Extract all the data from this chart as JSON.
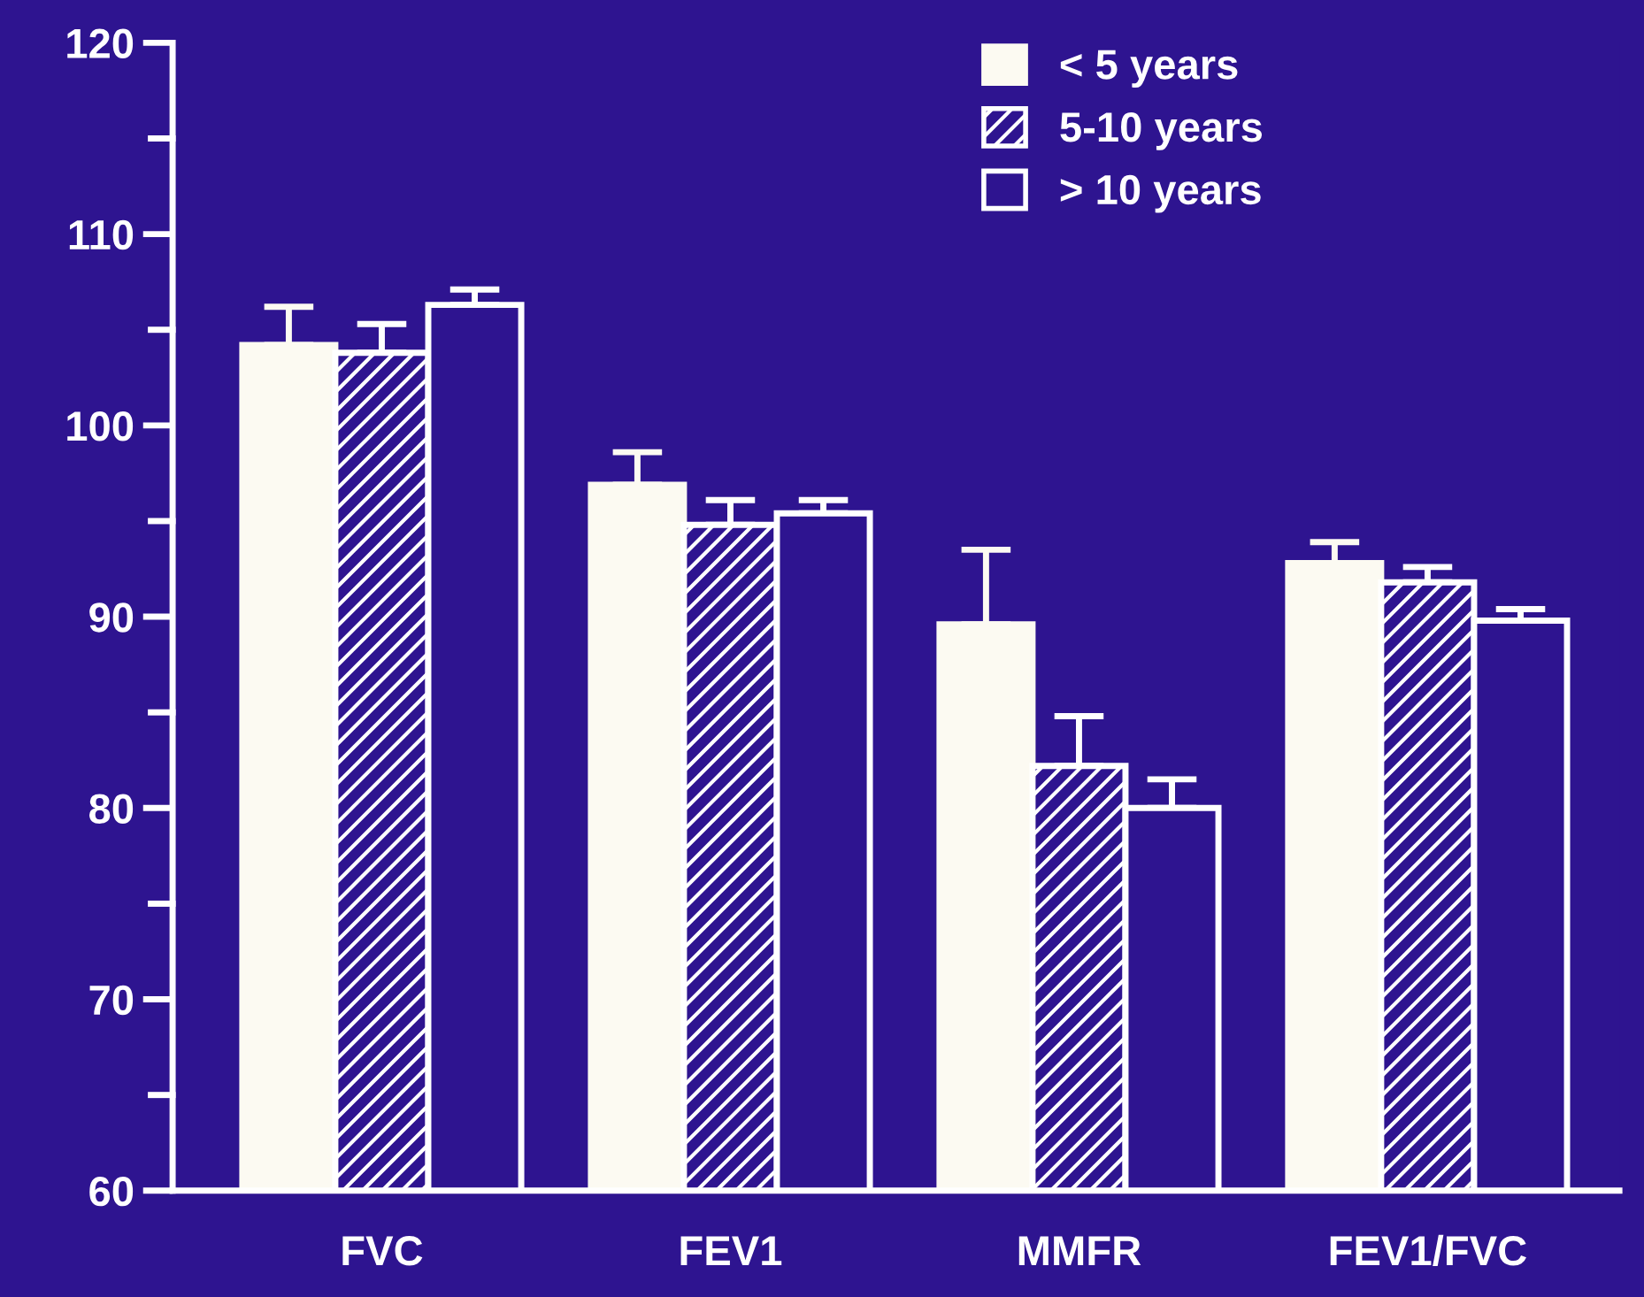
{
  "chart_data": {
    "type": "bar",
    "categories": [
      "FVC",
      "FEV1",
      "MMFR",
      "FEV1/FVC"
    ],
    "series": [
      {
        "name": "< 5 years",
        "color": "#fcfaf2",
        "values": [
          104.2,
          96.9,
          89.6,
          92.8
        ],
        "errors": [
          [
            104.2,
            106.2
          ],
          [
            96.9,
            98.6
          ],
          [
            89.6,
            93.5
          ],
          [
            92.8,
            93.9
          ]
        ]
      },
      {
        "name": "5-10 years",
        "color": "#ffffff",
        "values": [
          103.8,
          94.8,
          82.2,
          91.8
        ],
        "errors": [
          [
            103.8,
            105.3
          ],
          [
            94.8,
            96.1
          ],
          [
            82.2,
            84.8
          ],
          [
            91.8,
            92.6
          ]
        ]
      },
      {
        "name": "> 10 years",
        "color": "#ffffff",
        "values": [
          106.3,
          95.4,
          80.0,
          89.8
        ],
        "errors": [
          [
            106.3,
            107.1
          ],
          [
            95.4,
            96.1
          ],
          [
            80.0,
            81.5
          ],
          [
            89.8,
            90.4
          ]
        ]
      }
    ],
    "ylim": [
      60,
      120
    ],
    "yticks": [
      60,
      {
        "value": 65,
        "label": null
      },
      70,
      {
        "value": 75,
        "label": null
      },
      80,
      {
        "value": 85,
        "label": null
      },
      90,
      {
        "value": 95,
        "label": null
      },
      100,
      {
        "value": 105,
        "label": null
      },
      110,
      {
        "value": 115,
        "label": null
      },
      120
    ],
    "grid": false,
    "legend": "top right"
  }
}
